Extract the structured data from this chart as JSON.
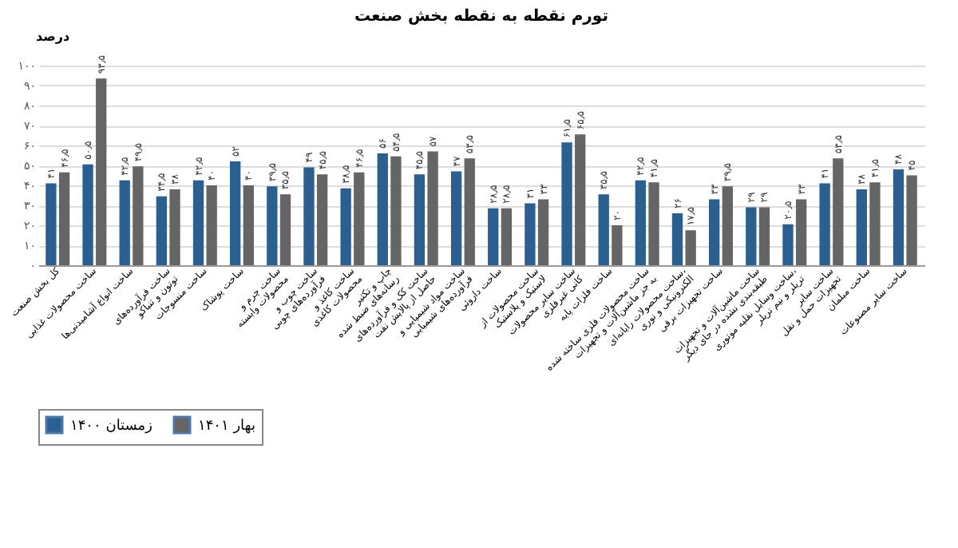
{
  "chart_data": {
    "type": "bar",
    "title": "تورم نقطه به نقطه بخش صنعت",
    "ylabel": "درصد",
    "categories": [
      "کل بخش صنعت",
      "ساخت محصولات غذایی",
      "ساخت انواع آشامیدنی‌ها",
      "ساخت فرآورده‌های توتون و تنباکو",
      "ساخت منسوجات",
      "ساخت پوشاک",
      "ساخت چرم و محصولات وابسته",
      "ساخت چوب و فرآورده‌های چوبی",
      "ساخت کاغذ و محصولات کاغذی",
      "چاپ و تکثیر رسانه‌های ضبط شده",
      "ساخت کک و فرآورده‌های حاصل از پالایش نفت",
      "ساخت مواد شیمیایی و فرآورده‌های شیمیایی",
      "ساخت داروئی",
      "ساخت محصولات از لاستیک و پلاستیک",
      "ساخت سایر محصولات کانی غیرفلزی",
      "ساخت فلزات پایه",
      "ساخت محصولات فلزی ساخته شده به جز ماشین‌آلات و تجهیزات",
      "ساخت محصولات رایانه‌ای، الکترونیکی و نوری",
      "ساخت تجهیزات برقی",
      "ساخت ماشین‌آلات و تجهیزات طبقه‌بندی نشده در جای دیگر",
      "ساخت وسایل نقلیه موتوری، تریلر و نیم تریلر",
      "ساخت سایر تجهیزات حمل و نقل",
      "ساخت مبلمان",
      "ساخت سایر مصنوعات"
    ],
    "series": [
      {
        "name": "زمستان ۱۴۰۰",
        "color": "#2a5f8f",
        "values": [
          41,
          50.5,
          42.5,
          34.5,
          42.5,
          52,
          39.5,
          49,
          38.5,
          56,
          45.5,
          47,
          28.5,
          31,
          61.5,
          35.5,
          42.5,
          26,
          33,
          29,
          20.5,
          41,
          38,
          48
        ],
        "value_labels": [
          "۴۱",
          "۵۰٫۵",
          "۴۲٫۵",
          "۳۴٫۵",
          "۴۲٫۵",
          "۵۲",
          "۳۹٫۵",
          "۴۹",
          "۳۸٫۵",
          "۵۶",
          "۴۵٫۵",
          "۴۷",
          "۲۸٫۵",
          "۳۱",
          "۶۱٫۵",
          "۳۵٫۵",
          "۴۲٫۵",
          "۲۶",
          "۳۳",
          "۲۹",
          "۲۰٫۵",
          "۴۱",
          "۳۸",
          "۴۸"
        ]
      },
      {
        "name": "بهار ۱۴۰۱",
        "color": "#656565",
        "values": [
          46.5,
          93.5,
          49.5,
          38,
          40,
          40,
          35.5,
          45.5,
          46.5,
          54.5,
          57,
          53.5,
          28.5,
          33,
          65.5,
          20,
          41.5,
          17.5,
          39.5,
          29,
          33,
          53.5,
          41.5,
          45
        ],
        "value_labels": [
          "۴۶٫۵",
          "۹۳٫۵",
          "۴۹٫۵",
          "۳۸",
          "۴۰",
          "۴۰",
          "۳۵٫۵",
          "۴۵٫۵",
          "۴۶٫۵",
          "۵۴٫۵",
          "۵۷",
          "۵۳٫۵",
          "۲۸٫۵",
          "۳۳",
          "۶۵٫۵",
          "۲۰",
          "۴۱٫۵",
          "۱۷٫۵",
          "۳۹٫۵",
          "۲۹",
          "۳۳",
          "۵۳٫۵",
          "۴۱٫۵",
          "۴۵"
        ]
      }
    ],
    "ylim": [
      0,
      100
    ],
    "yticks": [
      {
        "value": 0,
        "label": "۰"
      },
      {
        "value": 10,
        "label": "۱۰"
      },
      {
        "value": 20,
        "label": "۲۰"
      },
      {
        "value": 30,
        "label": "۳۰"
      },
      {
        "value": 40,
        "label": "۴۰"
      },
      {
        "value": 50,
        "label": "۵۰"
      },
      {
        "value": 60,
        "label": "۶۰"
      },
      {
        "value": 70,
        "label": "۷۰"
      },
      {
        "value": 80,
        "label": "۸۰"
      },
      {
        "value": 90,
        "label": "۹۰"
      },
      {
        "value": 100,
        "label": "۱۰۰"
      }
    ],
    "grid": "y",
    "legend": "bottom"
  }
}
